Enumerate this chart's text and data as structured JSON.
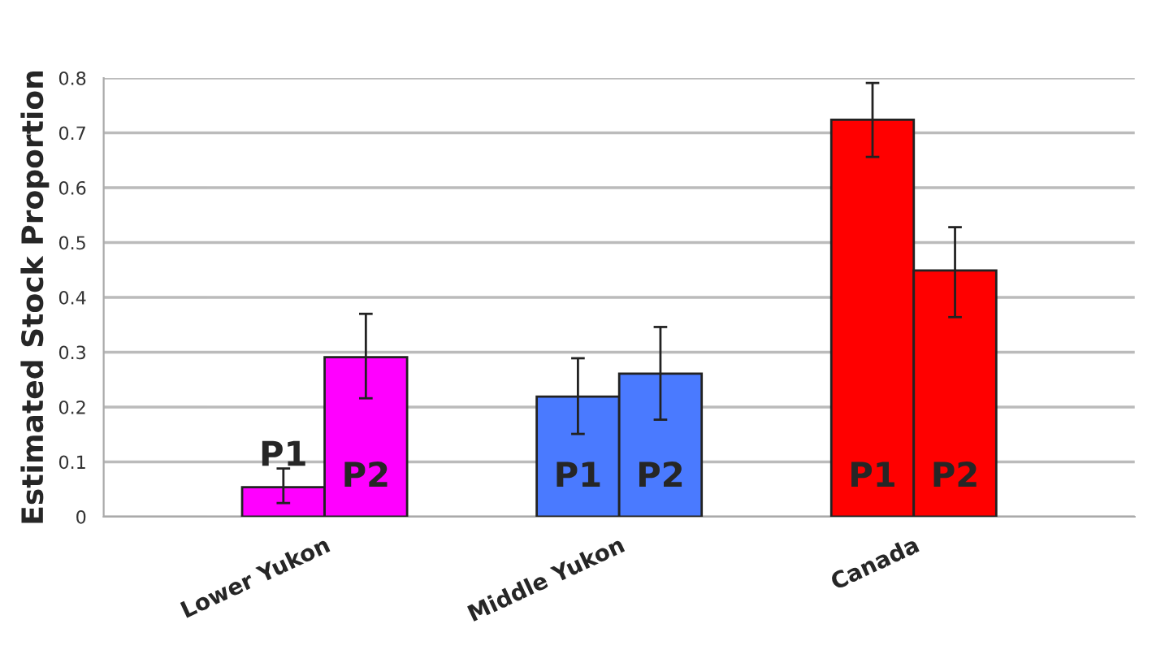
{
  "chart_data": {
    "type": "bar",
    "ylabel": "Estimated Stock Proportion",
    "categories": [
      "Lower Yukon",
      "Middle Yukon",
      "Canada"
    ],
    "series": [
      {
        "name": "P1",
        "colors": [
          "#ff00ff",
          "#4a7aff",
          "#ff0000"
        ],
        "values": [
          0.054,
          0.219,
          0.724
        ],
        "errors": [
          [
            0.025,
            0.088
          ],
          [
            0.151,
            0.289
          ],
          [
            0.656,
            0.791
          ]
        ]
      },
      {
        "name": "P2",
        "colors": [
          "#ff00ff",
          "#4a7aff",
          "#ff0000"
        ],
        "values": [
          0.291,
          0.261,
          0.449
        ],
        "errors": [
          [
            0.216,
            0.37
          ],
          [
            0.177,
            0.346
          ],
          [
            0.364,
            0.528
          ]
        ]
      }
    ],
    "ylim": [
      0,
      0.8
    ],
    "yticks": [
      0,
      0.1,
      0.2,
      0.3,
      0.4,
      0.5,
      0.6,
      0.7,
      0.8
    ],
    "grid": "y",
    "legend": false
  }
}
